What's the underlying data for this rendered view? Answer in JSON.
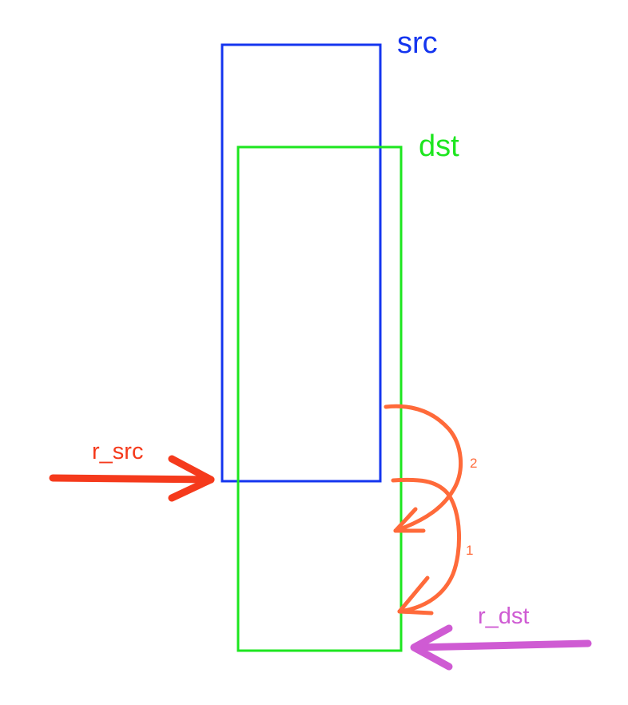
{
  "labels": {
    "src": "src",
    "dst": "dst",
    "r_src": "r_src",
    "r_dst": "r_dst",
    "step_2": "2",
    "step_1": "1"
  },
  "colors": {
    "src": "#1435ef",
    "dst": "#1de61f",
    "r_src": "#f53a1c",
    "r_dst": "#cf5bd3",
    "steps": "#ff6a3a",
    "background": "#ffffff"
  }
}
